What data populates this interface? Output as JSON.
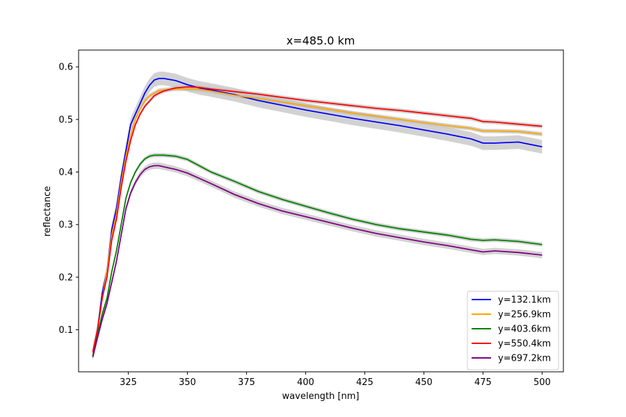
{
  "chart_data": {
    "type": "line",
    "title": "x=485.0 km",
    "xlabel": "wavelength [nm]",
    "ylabel": "reflectance",
    "xlim": [
      304,
      509
    ],
    "ylim": [
      0.02,
      0.632
    ],
    "xticks": [
      325,
      350,
      375,
      400,
      425,
      450,
      475,
      500
    ],
    "xtick_labels": [
      "325",
      "350",
      "375",
      "400",
      "425",
      "450",
      "475",
      "500"
    ],
    "yticks": [
      0.1,
      0.2,
      0.3,
      0.4,
      0.5,
      0.6
    ],
    "ytick_labels": [
      "0.1",
      "0.2",
      "0.3",
      "0.4",
      "0.5",
      "0.6"
    ],
    "grid": false,
    "legend_position": "lower right",
    "band_color": "#bfbfbf",
    "series": [
      {
        "name": "y=132.1km",
        "color": "#0000ff",
        "band_halfwidth": 0.013,
        "x": [
          310,
          312,
          314,
          316,
          318,
          320,
          322,
          324,
          326,
          328,
          330,
          332,
          334,
          336,
          338,
          340,
          345,
          350,
          355,
          360,
          370,
          380,
          390,
          400,
          410,
          420,
          430,
          440,
          450,
          460,
          470,
          475,
          480,
          490,
          500
        ],
        "y": [
          0.055,
          0.1,
          0.17,
          0.21,
          0.29,
          0.33,
          0.39,
          0.44,
          0.49,
          0.51,
          0.53,
          0.55,
          0.565,
          0.575,
          0.578,
          0.578,
          0.574,
          0.566,
          0.56,
          0.556,
          0.547,
          0.536,
          0.527,
          0.518,
          0.51,
          0.502,
          0.495,
          0.488,
          0.48,
          0.472,
          0.463,
          0.455,
          0.455,
          0.457,
          0.448
        ]
      },
      {
        "name": "y=256.9km",
        "color": "#ffa500",
        "band_halfwidth": 0.004,
        "x": [
          310,
          312,
          314,
          316,
          318,
          320,
          322,
          324,
          326,
          328,
          330,
          332,
          334,
          336,
          338,
          340,
          345,
          350,
          355,
          360,
          370,
          380,
          390,
          400,
          410,
          420,
          430,
          440,
          450,
          460,
          470,
          475,
          480,
          490,
          500
        ],
        "y": [
          0.055,
          0.1,
          0.16,
          0.21,
          0.28,
          0.32,
          0.38,
          0.43,
          0.47,
          0.5,
          0.52,
          0.535,
          0.545,
          0.55,
          0.555,
          0.556,
          0.558,
          0.558,
          0.557,
          0.554,
          0.546,
          0.54,
          0.533,
          0.526,
          0.519,
          0.512,
          0.506,
          0.5,
          0.494,
          0.488,
          0.483,
          0.478,
          0.478,
          0.477,
          0.472
        ]
      },
      {
        "name": "y=403.6km",
        "color": "#008000",
        "band_halfwidth": 0.004,
        "x": [
          310,
          312,
          314,
          316,
          318,
          320,
          322,
          324,
          326,
          328,
          330,
          332,
          334,
          336,
          338,
          340,
          345,
          350,
          355,
          360,
          370,
          380,
          390,
          400,
          410,
          420,
          430,
          440,
          450,
          460,
          470,
          475,
          480,
          490,
          500
        ],
        "y": [
          0.05,
          0.09,
          0.13,
          0.16,
          0.21,
          0.25,
          0.3,
          0.35,
          0.38,
          0.4,
          0.415,
          0.425,
          0.43,
          0.432,
          0.432,
          0.432,
          0.43,
          0.424,
          0.412,
          0.4,
          0.382,
          0.363,
          0.348,
          0.335,
          0.322,
          0.31,
          0.3,
          0.292,
          0.286,
          0.28,
          0.272,
          0.27,
          0.271,
          0.268,
          0.262
        ]
      },
      {
        "name": "y=550.4km",
        "color": "#ff0000",
        "band_halfwidth": 0.004,
        "x": [
          310,
          312,
          314,
          316,
          318,
          320,
          322,
          324,
          326,
          328,
          330,
          332,
          334,
          336,
          338,
          340,
          345,
          350,
          355,
          360,
          370,
          380,
          390,
          400,
          410,
          420,
          430,
          440,
          450,
          460,
          470,
          475,
          480,
          490,
          500
        ],
        "y": [
          0.058,
          0.1,
          0.16,
          0.2,
          0.27,
          0.31,
          0.37,
          0.42,
          0.46,
          0.49,
          0.51,
          0.525,
          0.535,
          0.545,
          0.55,
          0.554,
          0.56,
          0.562,
          0.561,
          0.558,
          0.553,
          0.548,
          0.542,
          0.536,
          0.531,
          0.526,
          0.521,
          0.517,
          0.512,
          0.507,
          0.502,
          0.496,
          0.495,
          0.491,
          0.487
        ]
      },
      {
        "name": "y=697.2km",
        "color": "#800080",
        "band_halfwidth": 0.006,
        "x": [
          310,
          312,
          314,
          316,
          318,
          320,
          322,
          324,
          326,
          328,
          330,
          332,
          334,
          336,
          338,
          340,
          345,
          350,
          355,
          360,
          370,
          380,
          390,
          400,
          410,
          420,
          430,
          440,
          450,
          460,
          470,
          475,
          480,
          490,
          500
        ],
        "y": [
          0.048,
          0.085,
          0.12,
          0.15,
          0.19,
          0.23,
          0.28,
          0.33,
          0.36,
          0.38,
          0.395,
          0.405,
          0.41,
          0.412,
          0.412,
          0.41,
          0.405,
          0.398,
          0.388,
          0.378,
          0.357,
          0.34,
          0.326,
          0.315,
          0.304,
          0.293,
          0.283,
          0.275,
          0.267,
          0.26,
          0.252,
          0.248,
          0.25,
          0.247,
          0.242
        ]
      }
    ]
  }
}
